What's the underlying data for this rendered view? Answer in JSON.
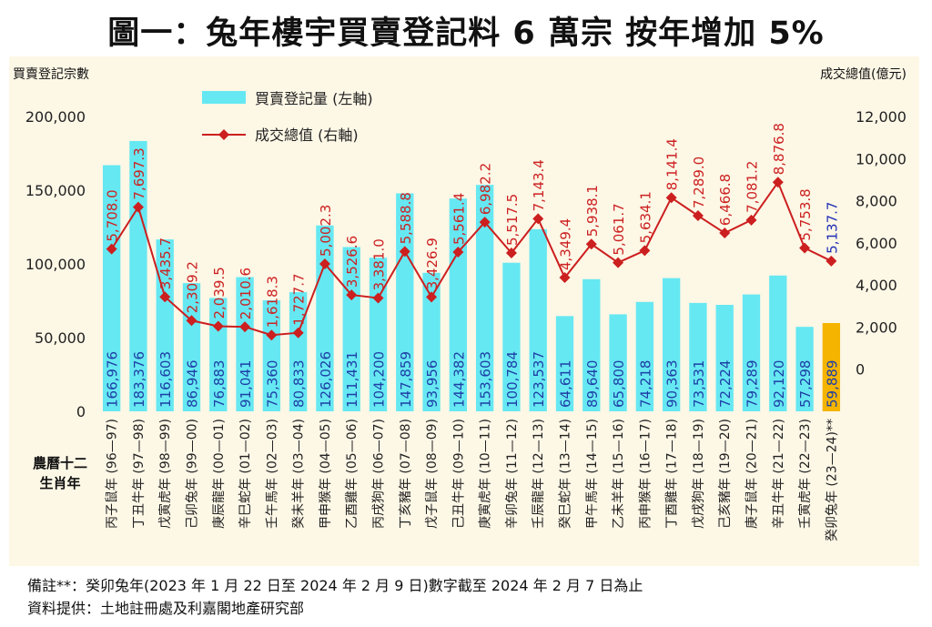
{
  "title": "圖一：兔年樓宇買賣登記料 6 萬宗  按年增加 5%",
  "footnote": "備註**：癸卯兔年(2023 年 1 月 22 日至 2024 年 2 月 9 日)數字截至 2024 年 2 月 7 日為止",
  "source": "資料提供：土地註冊處及利嘉閣地產研究部",
  "colors": {
    "bar": "#66e8f2",
    "bar_highlight": "#f5b400",
    "line": "#cc1f1f",
    "line_label": "#cc2222",
    "last_line_label": "#1f2fb5",
    "panel_bg": "#fdf7e6"
  },
  "chart_data": {
    "type": "bar",
    "ylabel_left": "買賣登記宗數",
    "ylabel_right": "成交總值(億元)",
    "xaxis_caption": "農曆十二生肖年",
    "ylim_left": [
      0,
      200000
    ],
    "ylim_right": [
      -2000,
      12000
    ],
    "yticks_left": [
      "0",
      "50,000",
      "100,000",
      "150,000",
      "200,000"
    ],
    "yticks_right": [
      "0",
      "2,000",
      "4,000",
      "6,000",
      "8,000",
      "10,000",
      "12,000"
    ],
    "legend": [
      "買賣登記量 (左軸)",
      "成交總值 (右軸)"
    ],
    "categories": [
      "丙子鼠年 (96—97)",
      "丁丑牛年 (97—98)",
      "戊寅虎年 (98—99)",
      "己卯兔年 (99—00)",
      "庚辰龍年 (00—01)",
      "辛巳蛇年 (01—02)",
      "壬午馬年 (02—03)",
      "癸未羊年 (03—04)",
      "甲申猴年 (04—05)",
      "乙酉雞年 (05—06)",
      "丙戌狗年 (06—07)",
      "丁亥豬年 (07—08)",
      "戊子鼠年 (08—09)",
      "己丑牛年 (09—10)",
      "庚寅虎年 (10—11)",
      "辛卯兔年 (11—12)",
      "壬辰龍年 (12—13)",
      "癸巳蛇年 (13—14)",
      "甲午馬年 (14—15)",
      "乙未羊年 (15—16)",
      "丙申猴年 (16—17)",
      "丁酉雞年 (17—18)",
      "戊戌狗年 (18—19)",
      "己亥豬年 (19—20)",
      "庚子鼠年 (20—21)",
      "辛丑牛年 (21—22)",
      "壬寅虎年 (22—23)",
      "癸卯兔年 (23—24)**"
    ],
    "series": [
      {
        "name": "買賣登記量 (左軸)",
        "axis": "left",
        "values": [
          166976,
          183376,
          116603,
          86946,
          76883,
          91041,
          75360,
          80833,
          126026,
          111431,
          104200,
          147859,
          93956,
          144382,
          153603,
          100784,
          123537,
          64611,
          89640,
          65800,
          74218,
          90363,
          73531,
          72224,
          79289,
          92120,
          57298,
          59889
        ],
        "labels": [
          "166,976",
          "183,376",
          "116,603",
          "86,946",
          "76,883",
          "91,041",
          "75,360",
          "80,833",
          "126,026",
          "111,431",
          "104,200",
          "147,859",
          "93,956",
          "144,382",
          "153,603",
          "100,784",
          "123,537",
          "64,611",
          "89,640",
          "65,800",
          "74,218",
          "90,363",
          "73,531",
          "72,224",
          "79,289",
          "92,120",
          "57,298",
          "59,889"
        ]
      },
      {
        "name": "成交總值 (右軸)",
        "axis": "right",
        "values": [
          5708.0,
          7697.3,
          3435.7,
          2309.2,
          2039.5,
          2010.6,
          1618.3,
          1727.7,
          5002.3,
          3526.6,
          3381.0,
          5588.8,
          3426.9,
          5561.4,
          6982.2,
          5517.5,
          7143.4,
          4349.4,
          5938.1,
          5061.7,
          5634.1,
          8141.4,
          7289.0,
          6466.8,
          7081.2,
          8876.8,
          5753.8,
          5137.7
        ],
        "labels": [
          "5,708.0",
          "7,697.3",
          "3,435.7",
          "2,309.2",
          "2,039.5",
          "2,010.6",
          "1,618.3",
          "1,727.7",
          "5,002.3",
          "3,526.6",
          "3,381.0",
          "5,588.8",
          "3,426.9",
          "5,561.4",
          "6,982.2",
          "5,517.5",
          "7,143.4",
          "4,349.4",
          "5,938.1",
          "5,061.7",
          "5,634.1",
          "8,141.4",
          "7,289.0",
          "6,466.8",
          "7,081.2",
          "8,876.8",
          "5,753.8",
          "5,137.7"
        ]
      }
    ]
  }
}
